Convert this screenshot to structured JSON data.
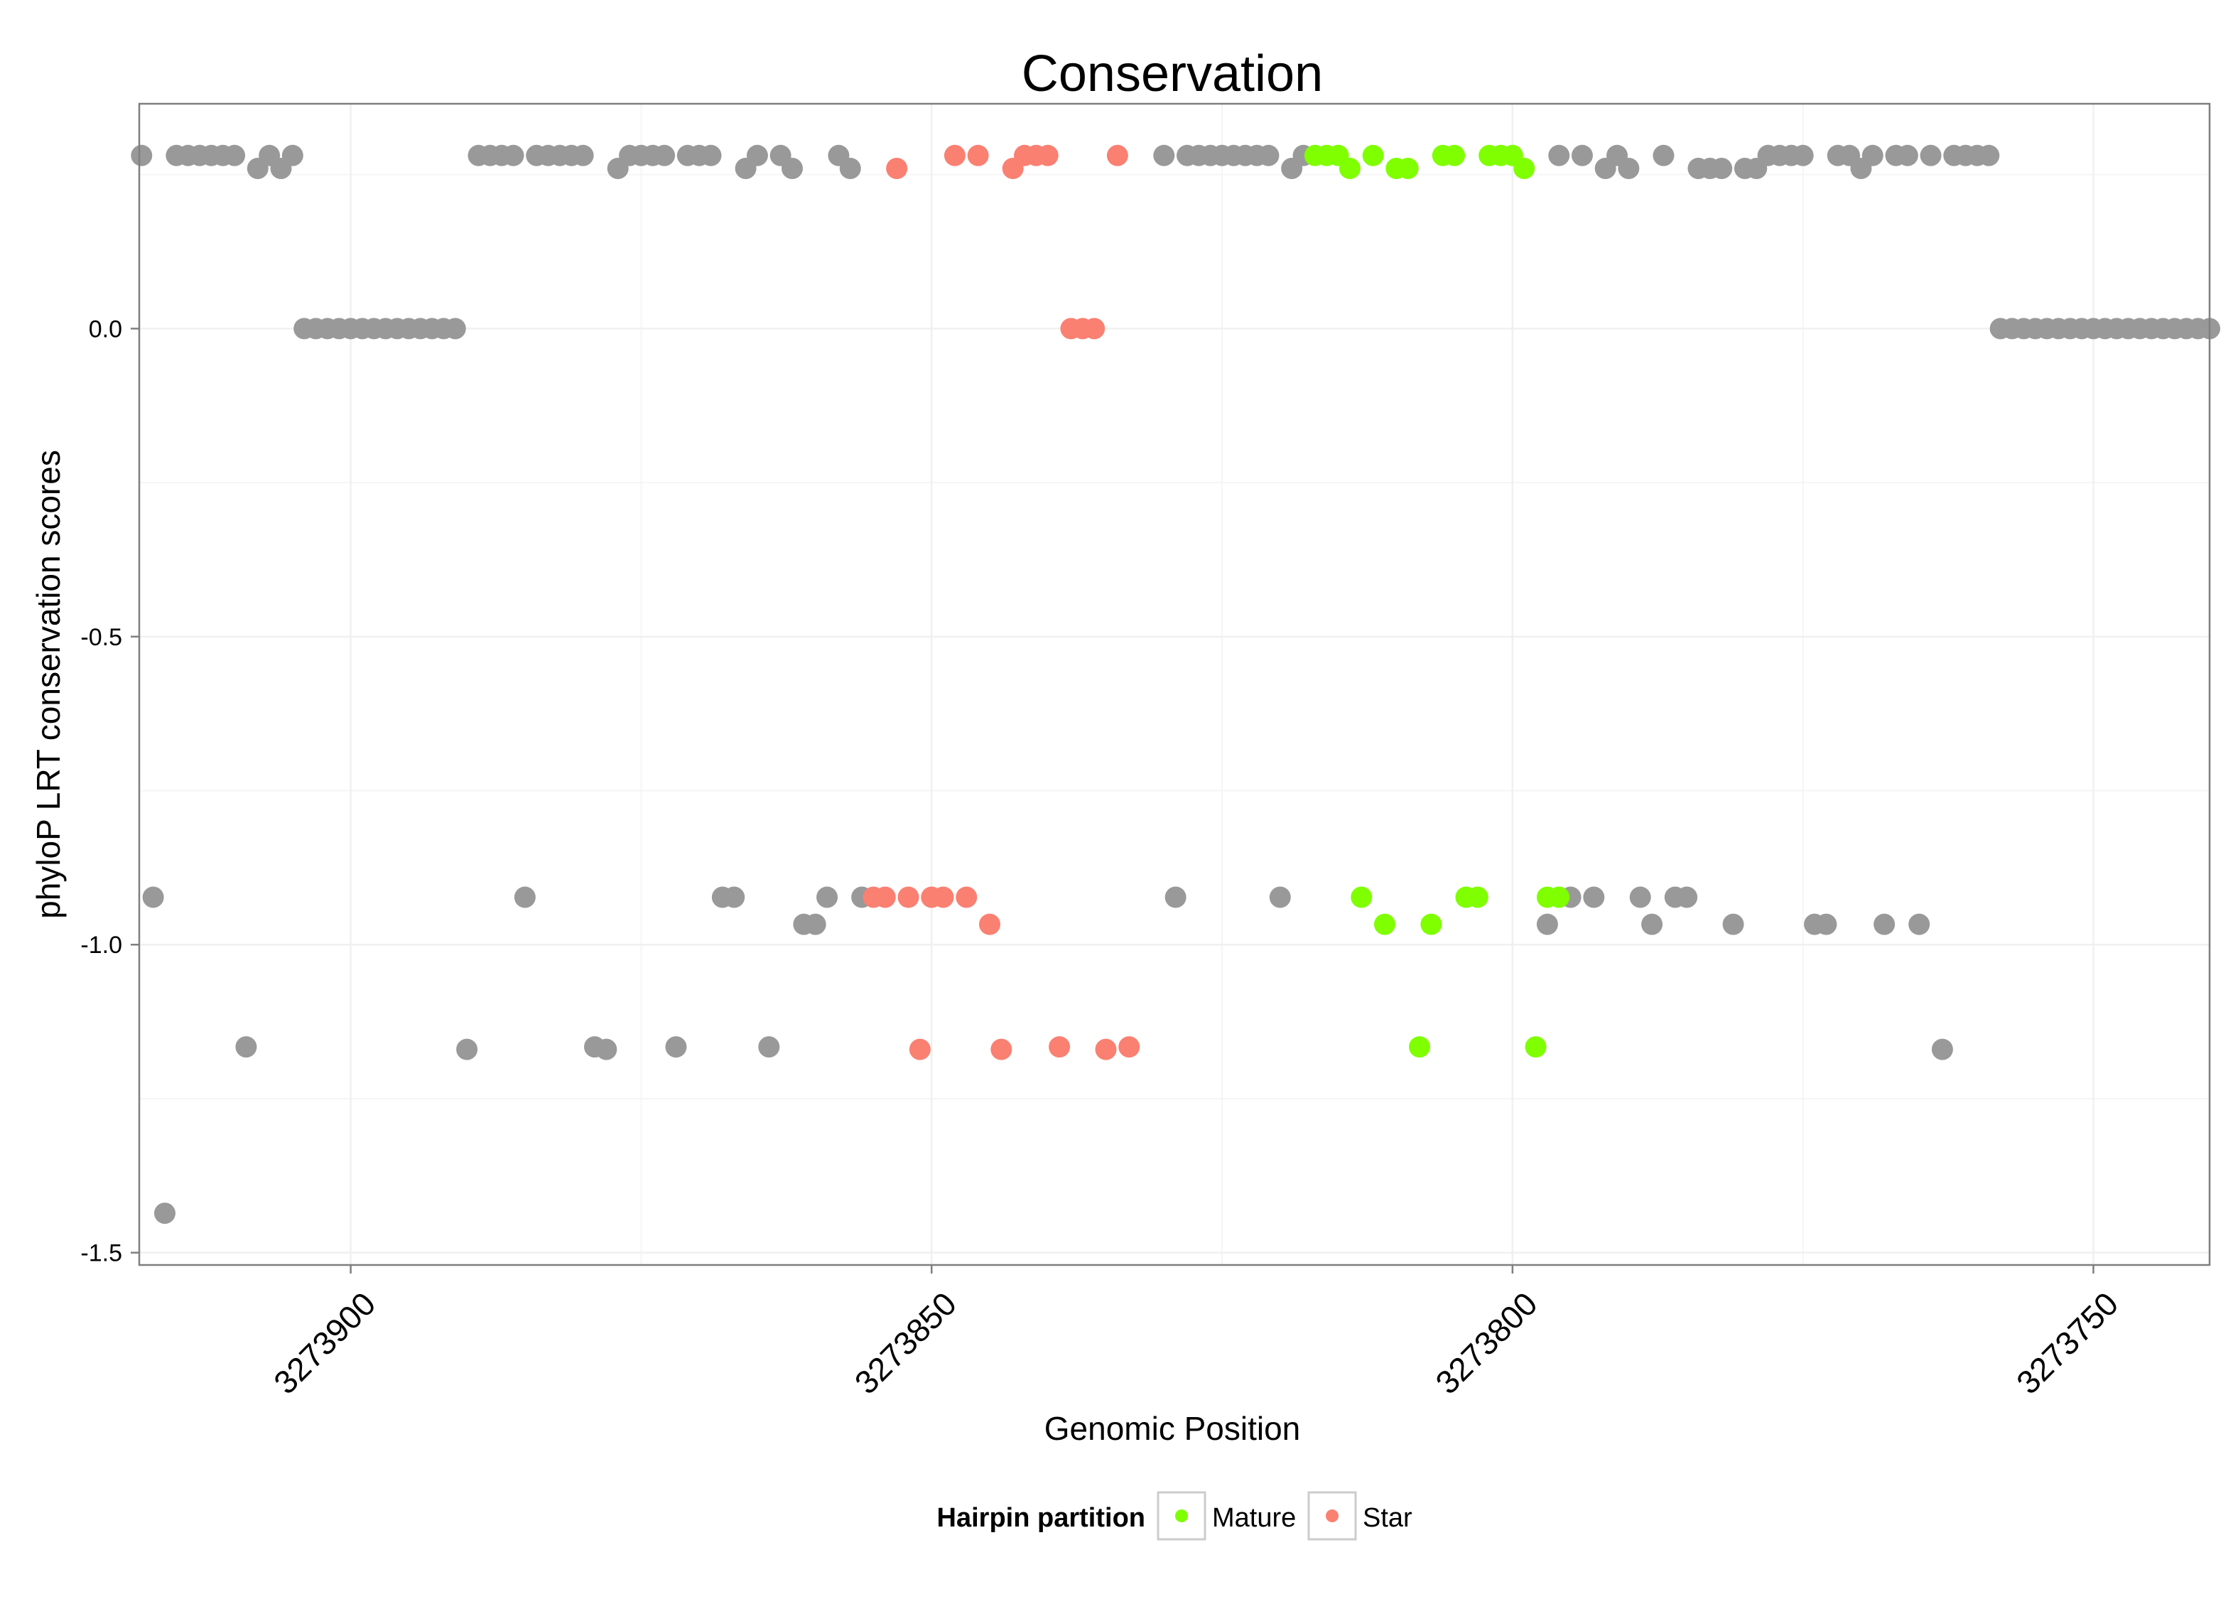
{
  "chart_data": {
    "type": "scatter",
    "title": "Conservation",
    "xlabel": "Genomic Position",
    "ylabel": "phyloP LRT conservation scores",
    "x_reversed": true,
    "xlim": [
      3273740.0,
      3273918.2
    ],
    "ylim": [
      -1.52,
      0.365
    ],
    "xticks": [
      3273900,
      3273850,
      3273800,
      3273750
    ],
    "xtick_labels": [
      "3273900",
      "3273850",
      "3273800",
      "3273750"
    ],
    "yticks": [
      0.0,
      -0.5,
      -1.0,
      -1.5
    ],
    "ytick_labels": [
      "0.0",
      "-0.5",
      "-1.0",
      "-1.5"
    ],
    "grid": true,
    "legend": {
      "title": "Hairpin partition",
      "position": "bottom",
      "entries": [
        {
          "label": "Mature",
          "color": "#7FFF00"
        },
        {
          "label": "Star",
          "color": "#FA8072"
        }
      ]
    },
    "colors": {
      "other": "#999999",
      "Mature": "#7FFF00",
      "Star": "#FA8072"
    },
    "series": [
      {
        "name": "other",
        "points": [
          [
            3273918,
            0.281
          ],
          [
            3273917,
            -0.923
          ],
          [
            3273916,
            -1.436
          ],
          [
            3273915,
            0.281
          ],
          [
            3273914,
            0.281
          ],
          [
            3273913,
            0.281
          ],
          [
            3273912,
            0.281
          ],
          [
            3273911,
            0.281
          ],
          [
            3273910,
            0.281
          ],
          [
            3273909,
            -1.166
          ],
          [
            3273908,
            0.26
          ],
          [
            3273907,
            0.281
          ],
          [
            3273906,
            0.26
          ],
          [
            3273905,
            0.281
          ],
          [
            3273904,
            0.0
          ],
          [
            3273903,
            0.0
          ],
          [
            3273902,
            0.0
          ],
          [
            3273901,
            0.0
          ],
          [
            3273900,
            0.0
          ],
          [
            3273899,
            0.0
          ],
          [
            3273898,
            0.0
          ],
          [
            3273897,
            0.0
          ],
          [
            3273896,
            0.0
          ],
          [
            3273895,
            0.0
          ],
          [
            3273894,
            0.0
          ],
          [
            3273893,
            0.0
          ],
          [
            3273892,
            0.0
          ],
          [
            3273891,
            0.0
          ],
          [
            3273890,
            -1.17
          ],
          [
            3273889,
            0.281
          ],
          [
            3273888,
            0.281
          ],
          [
            3273887,
            0.281
          ],
          [
            3273886,
            0.281
          ],
          [
            3273885,
            -0.923
          ],
          [
            3273884,
            0.281
          ],
          [
            3273883,
            0.281
          ],
          [
            3273882,
            0.281
          ],
          [
            3273881,
            0.281
          ],
          [
            3273880,
            0.281
          ],
          [
            3273879,
            -1.166
          ],
          [
            3273878,
            -1.17
          ],
          [
            3273877,
            0.26
          ],
          [
            3273876,
            0.281
          ],
          [
            3273875,
            0.281
          ],
          [
            3273874,
            0.281
          ],
          [
            3273873,
            0.281
          ],
          [
            3273872,
            -1.166
          ],
          [
            3273871,
            0.281
          ],
          [
            3273870,
            0.281
          ],
          [
            3273869,
            0.281
          ],
          [
            3273868,
            -0.923
          ],
          [
            3273867,
            -0.923
          ],
          [
            3273866,
            0.26
          ],
          [
            3273865,
            0.281
          ],
          [
            3273864,
            -1.166
          ],
          [
            3273863,
            0.281
          ],
          [
            3273862,
            0.26
          ],
          [
            3273861,
            -0.967
          ],
          [
            3273860,
            -0.967
          ],
          [
            3273859,
            -0.923
          ],
          [
            3273858,
            0.281
          ],
          [
            3273857,
            0.26
          ],
          [
            3273856,
            -0.923
          ],
          [
            3273830,
            0.281
          ],
          [
            3273829,
            -0.923
          ],
          [
            3273828,
            0.281
          ],
          [
            3273827,
            0.281
          ],
          [
            3273826,
            0.281
          ],
          [
            3273825,
            0.281
          ],
          [
            3273824,
            0.281
          ],
          [
            3273823,
            0.281
          ],
          [
            3273822,
            0.281
          ],
          [
            3273821,
            0.281
          ],
          [
            3273820,
            -0.923
          ],
          [
            3273819,
            0.26
          ],
          [
            3273818,
            0.281
          ],
          [
            3273797,
            -0.967
          ],
          [
            3273796,
            0.281
          ],
          [
            3273795,
            -0.923
          ],
          [
            3273794,
            0.281
          ],
          [
            3273793,
            -0.923
          ],
          [
            3273792,
            0.26
          ],
          [
            3273791,
            0.281
          ],
          [
            3273790,
            0.26
          ],
          [
            3273789,
            -0.923
          ],
          [
            3273788,
            -0.967
          ],
          [
            3273787,
            0.281
          ],
          [
            3273786,
            -0.923
          ],
          [
            3273785,
            -0.923
          ],
          [
            3273784,
            0.26
          ],
          [
            3273783,
            0.26
          ],
          [
            3273782,
            0.26
          ],
          [
            3273781,
            -0.967
          ],
          [
            3273780,
            0.26
          ],
          [
            3273779,
            0.26
          ],
          [
            3273778,
            0.281
          ],
          [
            3273777,
            0.281
          ],
          [
            3273776,
            0.281
          ],
          [
            3273775,
            0.281
          ],
          [
            3273774,
            -0.967
          ],
          [
            3273773,
            -0.967
          ],
          [
            3273772,
            0.281
          ],
          [
            3273771,
            0.281
          ],
          [
            3273770,
            0.26
          ],
          [
            3273769,
            0.281
          ],
          [
            3273768,
            -0.967
          ],
          [
            3273767,
            0.281
          ],
          [
            3273766,
            0.281
          ],
          [
            3273765,
            -0.967
          ],
          [
            3273764,
            0.281
          ],
          [
            3273763,
            -1.17
          ],
          [
            3273762,
            0.281
          ],
          [
            3273761,
            0.281
          ],
          [
            3273760,
            0.281
          ],
          [
            3273759,
            0.281
          ],
          [
            3273758,
            0.0
          ],
          [
            3273757,
            0.0
          ],
          [
            3273756,
            0.0
          ],
          [
            3273755,
            0.0
          ],
          [
            3273754,
            0.0
          ],
          [
            3273753,
            0.0
          ],
          [
            3273752,
            0.0
          ],
          [
            3273751,
            0.0
          ],
          [
            3273750,
            0.0
          ],
          [
            3273749,
            0.0
          ],
          [
            3273748,
            0.0
          ],
          [
            3273747,
            0.0
          ],
          [
            3273746,
            0.0
          ],
          [
            3273745,
            0.0
          ],
          [
            3273744,
            0.0
          ],
          [
            3273743,
            0.0
          ],
          [
            3273742,
            0.0
          ],
          [
            3273741,
            0.0
          ],
          [
            3273740,
            0.0
          ]
        ]
      },
      {
        "name": "Star",
        "points": [
          [
            3273855,
            -0.923
          ],
          [
            3273854,
            -0.923
          ],
          [
            3273853,
            0.26
          ],
          [
            3273852,
            -0.923
          ],
          [
            3273851,
            -1.17
          ],
          [
            3273850,
            -0.923
          ],
          [
            3273849,
            -0.923
          ],
          [
            3273848,
            0.281
          ],
          [
            3273847,
            -0.923
          ],
          [
            3273846,
            0.281
          ],
          [
            3273845,
            -0.967
          ],
          [
            3273844,
            -1.17
          ],
          [
            3273843,
            0.26
          ],
          [
            3273842,
            0.281
          ],
          [
            3273841,
            0.281
          ],
          [
            3273840,
            0.281
          ],
          [
            3273839,
            -1.166
          ],
          [
            3273838,
            0.0
          ],
          [
            3273837,
            0.0
          ],
          [
            3273836,
            0.0
          ],
          [
            3273835,
            -1.17
          ],
          [
            3273834,
            0.281
          ],
          [
            3273833,
            -1.166
          ]
        ]
      },
      {
        "name": "Mature",
        "points": [
          [
            3273817,
            0.281
          ],
          [
            3273816,
            0.281
          ],
          [
            3273815,
            0.281
          ],
          [
            3273814,
            0.26
          ],
          [
            3273813,
            -0.923
          ],
          [
            3273812,
            0.281
          ],
          [
            3273811,
            -0.967
          ],
          [
            3273810,
            0.26
          ],
          [
            3273809,
            0.26
          ],
          [
            3273808,
            -1.166
          ],
          [
            3273807,
            -0.967
          ],
          [
            3273806,
            0.281
          ],
          [
            3273805,
            0.281
          ],
          [
            3273804,
            -0.923
          ],
          [
            3273803,
            -0.923
          ],
          [
            3273802,
            0.281
          ],
          [
            3273801,
            0.281
          ],
          [
            3273800,
            0.281
          ],
          [
            3273799,
            0.26
          ],
          [
            3273798,
            -1.166
          ],
          [
            3273797,
            -0.923
          ],
          [
            3273796,
            -0.923
          ]
        ]
      }
    ]
  }
}
